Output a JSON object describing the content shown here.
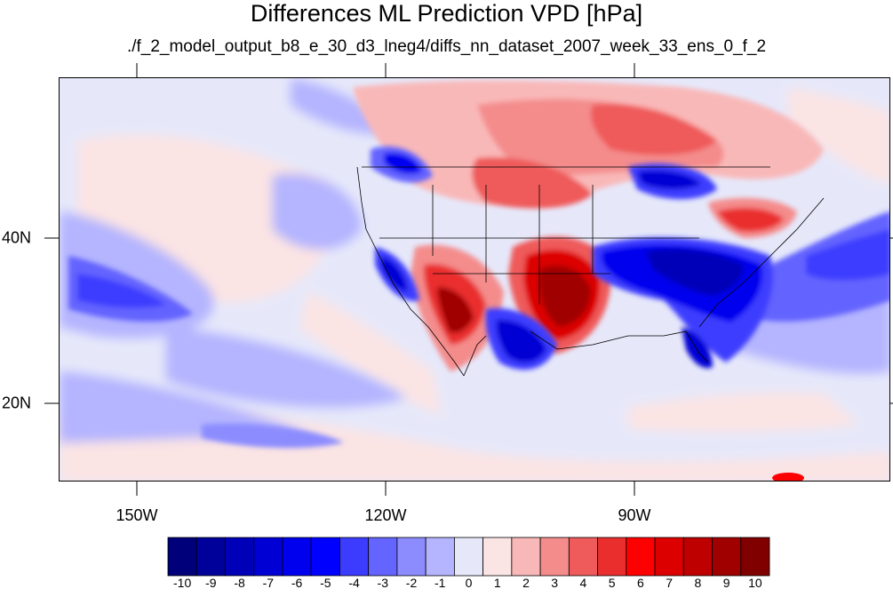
{
  "title": "Differences ML Prediction VPD [hPa]",
  "subtitle": "./f_2_model_output_b8_e_30_d3_lneg4/diffs_nn_dataset_2007_week_33_ens_0_f_2",
  "axes": {
    "lon_labels": [
      "150W",
      "120W",
      "90W"
    ],
    "lat_labels": [
      "40N",
      "20N"
    ]
  },
  "colorbar": {
    "labels": [
      "-10",
      "-9",
      "-8",
      "-7",
      "-6",
      "-5",
      "-4",
      "-3",
      "-2",
      "-1",
      "0",
      "1",
      "2",
      "3",
      "4",
      "5",
      "6",
      "7",
      "8",
      "9",
      "10"
    ],
    "colors": [
      "#00007a",
      "#00009a",
      "#0000b8",
      "#0000d4",
      "#0000ee",
      "#0000ff",
      "#3c3cff",
      "#6464ff",
      "#8c8cff",
      "#b4b4ff",
      "#e6e8fa",
      "#fbe4e4",
      "#f9b8b8",
      "#f48c8c",
      "#ef5a5a",
      "#ea2e2e",
      "#ff0000",
      "#dc0000",
      "#be0000",
      "#a00000",
      "#800000"
    ]
  }
}
